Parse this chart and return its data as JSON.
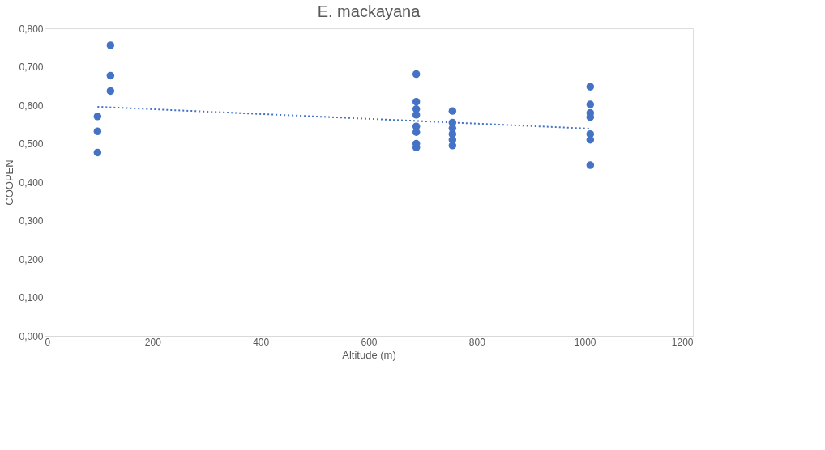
{
  "chart_data": {
    "type": "scatter",
    "title": "E. mackayana",
    "xlabel": "Altitude (m)",
    "ylabel": "COOPEN",
    "xlim": [
      0,
      1200
    ],
    "xticks": [
      0,
      200,
      400,
      600,
      800,
      1000,
      1200
    ],
    "ylim": [
      0,
      0.8
    ],
    "yticks": [
      {
        "value": 0,
        "label": "0,000"
      },
      {
        "value": 0.1,
        "label": "0,100"
      },
      {
        "value": 0.2,
        "label": "0,200"
      },
      {
        "value": 0.3,
        "label": "0,300"
      },
      {
        "value": 0.4,
        "label": "0,400"
      },
      {
        "value": 0.5,
        "label": "0,500"
      },
      {
        "value": 0.6,
        "label": "0,600"
      },
      {
        "value": 0.7,
        "label": "0,700"
      },
      {
        "value": 0.8,
        "label": "0,800"
      }
    ],
    "grid": false,
    "series": [
      {
        "marker": "circle",
        "color": "#4472c4",
        "x": [
          98,
          98,
          98,
          122,
          122,
          122,
          688,
          688,
          688,
          688,
          688,
          688,
          688,
          688,
          755,
          755,
          755,
          755,
          755,
          755,
          1010,
          1010,
          1010,
          1010,
          1010,
          1010,
          1010
        ],
        "values": [
          0.571,
          0.532,
          0.477,
          0.756,
          0.677,
          0.637,
          0.681,
          0.609,
          0.59,
          0.575,
          0.545,
          0.53,
          0.5,
          0.49,
          0.585,
          0.555,
          0.54,
          0.525,
          0.51,
          0.495,
          0.648,
          0.602,
          0.58,
          0.569,
          0.525,
          0.51,
          0.444
        ]
      },
      {
        "type": "line",
        "color": "#4472c4",
        "line_style": "dotted",
        "x": [
          98,
          1010
        ],
        "values": [
          0.596,
          0.539
        ]
      }
    ]
  }
}
